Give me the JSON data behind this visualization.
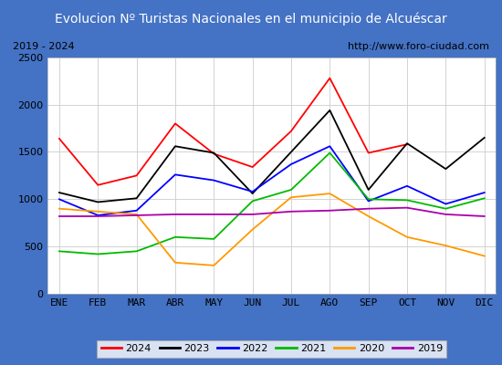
{
  "title": "Evolucion Nº Turistas Nacionales en el municipio de Alcuéscar",
  "subtitle_left": "2019 - 2024",
  "subtitle_right": "http://www.foro-ciudad.com",
  "months": [
    "ENE",
    "FEB",
    "MAR",
    "ABR",
    "MAY",
    "JUN",
    "JUL",
    "AGO",
    "SEP",
    "OCT",
    "NOV",
    "DIC"
  ],
  "series": {
    "2024": [
      1640,
      1150,
      1250,
      1800,
      1480,
      1340,
      1720,
      2280,
      1490,
      1580,
      null,
      null
    ],
    "2023": [
      1070,
      970,
      1010,
      1560,
      1490,
      1060,
      1500,
      1940,
      1100,
      1590,
      1320,
      1650
    ],
    "2022": [
      1000,
      830,
      880,
      1260,
      1200,
      1080,
      1370,
      1560,
      980,
      1140,
      950,
      1070
    ],
    "2021": [
      450,
      420,
      450,
      600,
      580,
      980,
      1100,
      1490,
      1000,
      990,
      900,
      1010
    ],
    "2020": [
      900,
      870,
      840,
      330,
      300,
      680,
      1020,
      1060,
      820,
      600,
      510,
      400
    ],
    "2019": [
      820,
      820,
      830,
      840,
      840,
      840,
      870,
      880,
      900,
      910,
      840,
      820
    ]
  },
  "colors": {
    "2024": "#ff0000",
    "2023": "#000000",
    "2022": "#0000ff",
    "2021": "#00bb00",
    "2020": "#ff9900",
    "2019": "#aa00aa"
  },
  "ylim": [
    0,
    2500
  ],
  "yticks": [
    0,
    500,
    1000,
    1500,
    2000,
    2500
  ],
  "title_bg": "#4472c4",
  "title_color": "#ffffff",
  "plot_bg": "#ffffff",
  "grid_color": "#cccccc",
  "border_color": "#4472c4",
  "title_fontsize": 10,
  "subtitle_fontsize": 8,
  "axis_fontsize": 8,
  "legend_fontsize": 8
}
